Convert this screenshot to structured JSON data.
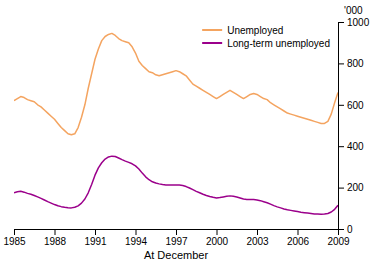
{
  "chart_data": {
    "type": "line",
    "xlabel": "At December",
    "ylabel": "'000",
    "xlim": [
      1985,
      2009
    ],
    "ylim": [
      0,
      1000
    ],
    "xticks": [
      1985,
      1988,
      1991,
      1994,
      1997,
      2000,
      2003,
      2006,
      2009
    ],
    "yticks": [
      0,
      200,
      400,
      600,
      800,
      1000
    ],
    "grid": false,
    "legend": "top-right",
    "x": [
      1985,
      1985.25,
      1985.5,
      1985.75,
      1986,
      1986.25,
      1986.5,
      1986.75,
      1987,
      1987.25,
      1987.5,
      1987.75,
      1988,
      1988.25,
      1988.5,
      1988.75,
      1989,
      1989.25,
      1989.5,
      1989.75,
      1990,
      1990.25,
      1990.5,
      1990.75,
      1991,
      1991.25,
      1991.5,
      1991.75,
      1992,
      1992.25,
      1992.5,
      1992.75,
      1993,
      1993.25,
      1993.5,
      1993.75,
      1994,
      1994.25,
      1994.5,
      1994.75,
      1995,
      1995.25,
      1995.5,
      1995.75,
      1996,
      1996.25,
      1996.5,
      1996.75,
      1997,
      1997.25,
      1997.5,
      1997.75,
      1998,
      1998.25,
      1998.5,
      1998.75,
      1999,
      1999.25,
      1999.5,
      1999.75,
      2000,
      2000.25,
      2000.5,
      2000.75,
      2001,
      2001.25,
      2001.5,
      2001.75,
      2002,
      2002.25,
      2002.5,
      2002.75,
      2003,
      2003.25,
      2003.5,
      2003.75,
      2004,
      2004.25,
      2004.5,
      2004.75,
      2005,
      2005.25,
      2005.5,
      2005.75,
      2006,
      2006.25,
      2006.5,
      2006.75,
      2007,
      2007.25,
      2007.5,
      2007.75,
      2008,
      2008.25,
      2008.5,
      2008.75,
      2009
    ],
    "series": [
      {
        "name": "Unemployed",
        "color": "#F4A460",
        "values": [
          620,
          630,
          640,
          635,
          625,
          620,
          615,
          600,
          590,
          575,
          560,
          545,
          530,
          510,
          490,
          475,
          460,
          455,
          460,
          490,
          540,
          600,
          680,
          750,
          820,
          870,
          910,
          930,
          940,
          945,
          935,
          920,
          910,
          905,
          900,
          880,
          850,
          810,
          790,
          775,
          760,
          755,
          745,
          740,
          745,
          750,
          755,
          760,
          765,
          760,
          750,
          740,
          720,
          700,
          690,
          680,
          670,
          660,
          650,
          640,
          630,
          640,
          650,
          660,
          670,
          660,
          650,
          640,
          630,
          640,
          650,
          655,
          650,
          640,
          630,
          625,
          610,
          600,
          590,
          580,
          570,
          560,
          555,
          550,
          545,
          540,
          535,
          530,
          525,
          520,
          515,
          510,
          510,
          520,
          555,
          610,
          660
        ]
      },
      {
        "name": "Long-term unemployed",
        "color": "#9B008B",
        "values": [
          175,
          180,
          182,
          178,
          172,
          168,
          162,
          155,
          148,
          140,
          132,
          125,
          118,
          112,
          108,
          105,
          103,
          102,
          105,
          112,
          125,
          145,
          175,
          215,
          260,
          295,
          320,
          338,
          348,
          352,
          350,
          343,
          335,
          328,
          322,
          315,
          305,
          290,
          270,
          252,
          238,
          228,
          222,
          218,
          215,
          213,
          212,
          212,
          213,
          212,
          210,
          205,
          198,
          190,
          182,
          175,
          168,
          162,
          157,
          153,
          150,
          152,
          155,
          158,
          160,
          158,
          155,
          150,
          145,
          143,
          142,
          142,
          140,
          137,
          132,
          127,
          120,
          113,
          107,
          102,
          97,
          93,
          90,
          87,
          84,
          81,
          79,
          77,
          75,
          73,
          72,
          71,
          72,
          75,
          82,
          95,
          115
        ]
      }
    ]
  }
}
